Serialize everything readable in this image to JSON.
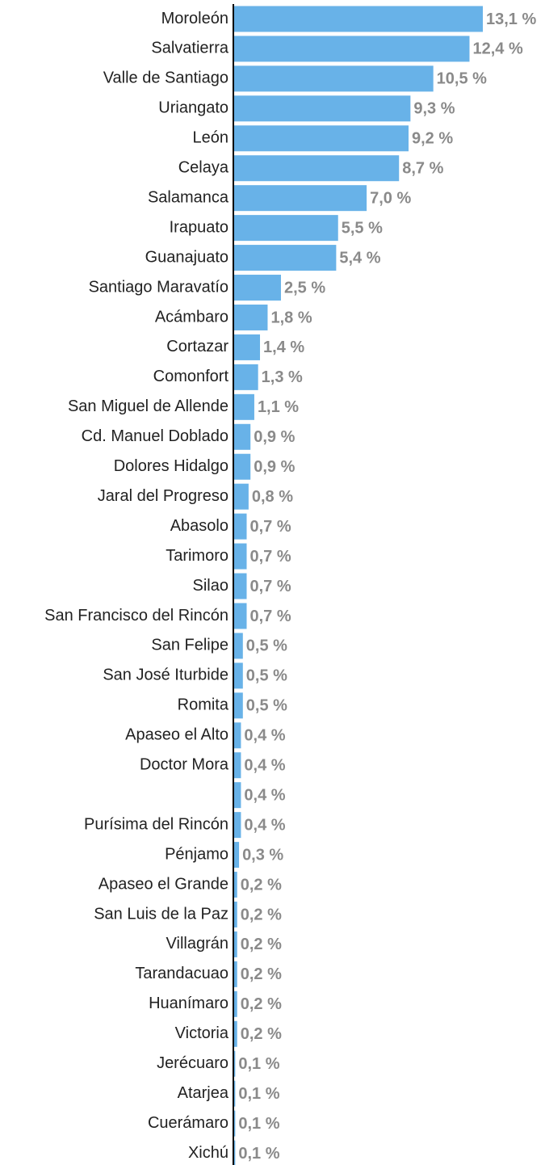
{
  "chart_data": {
    "type": "bar",
    "orientation": "horizontal",
    "color": "#68b2e8",
    "categories": [
      "Moroleón",
      "Salvatierra",
      "Valle de Santiago",
      "Uriangato",
      "León",
      "Celaya",
      "Salamanca",
      "Irapuato",
      "Guanajuato",
      "Santiago Maravatío",
      "Acámbaro",
      "Cortazar",
      "Comonfort",
      "San Miguel de Allende",
      "Cd. Manuel Doblado",
      "Dolores Hidalgo",
      "Jaral del Progreso",
      "Abasolo",
      "Tarimoro",
      "Silao",
      "San Francisco del Rincón",
      "San Felipe",
      "San José Iturbide",
      "Romita",
      "Apaseo el Alto",
      "Doctor Mora",
      null,
      "Purísima del Rincón",
      "Pénjamo",
      "Apaseo el Grande",
      "San Luis de la Paz",
      "Villagrán",
      "Tarandacuao",
      "Huanímaro",
      "Victoria",
      "Jerécuaro",
      "Atarjea",
      "Cuerámaro",
      "Xichú"
    ],
    "values": [
      13.1,
      12.4,
      10.5,
      9.3,
      9.2,
      8.7,
      7.0,
      5.5,
      5.4,
      2.5,
      1.8,
      1.4,
      1.3,
      1.1,
      0.9,
      0.9,
      0.8,
      0.7,
      0.7,
      0.7,
      0.7,
      0.5,
      0.5,
      0.5,
      0.4,
      0.4,
      0.4,
      0.4,
      0.3,
      0.2,
      0.2,
      0.2,
      0.2,
      0.2,
      0.2,
      0.1,
      0.1,
      0.1,
      0.1
    ],
    "value_labels": [
      "13,1 %",
      "12,4 %",
      "10,5 %",
      "9,3 %",
      "9,2 %",
      "8,7 %",
      "7,0 %",
      "5,5 %",
      "5,4 %",
      "2,5 %",
      "1,8 %",
      "1,4 %",
      "1,3 %",
      "1,1 %",
      "0,9 %",
      "0,9 %",
      "0,8 %",
      "0,7 %",
      "0,7 %",
      "0,7 %",
      "0,7 %",
      "0,5 %",
      "0,5 %",
      "0,5 %",
      "0,4 %",
      "0,4 %",
      "0,4 %",
      "0,4 %",
      "0,3 %",
      "0,2 %",
      "0,2 %",
      "0,2 %",
      "0,2 %",
      "0,2 %",
      "0,2 %",
      "0,1 %",
      "0,1 %",
      "0,1 %",
      "0,1 %"
    ]
  }
}
